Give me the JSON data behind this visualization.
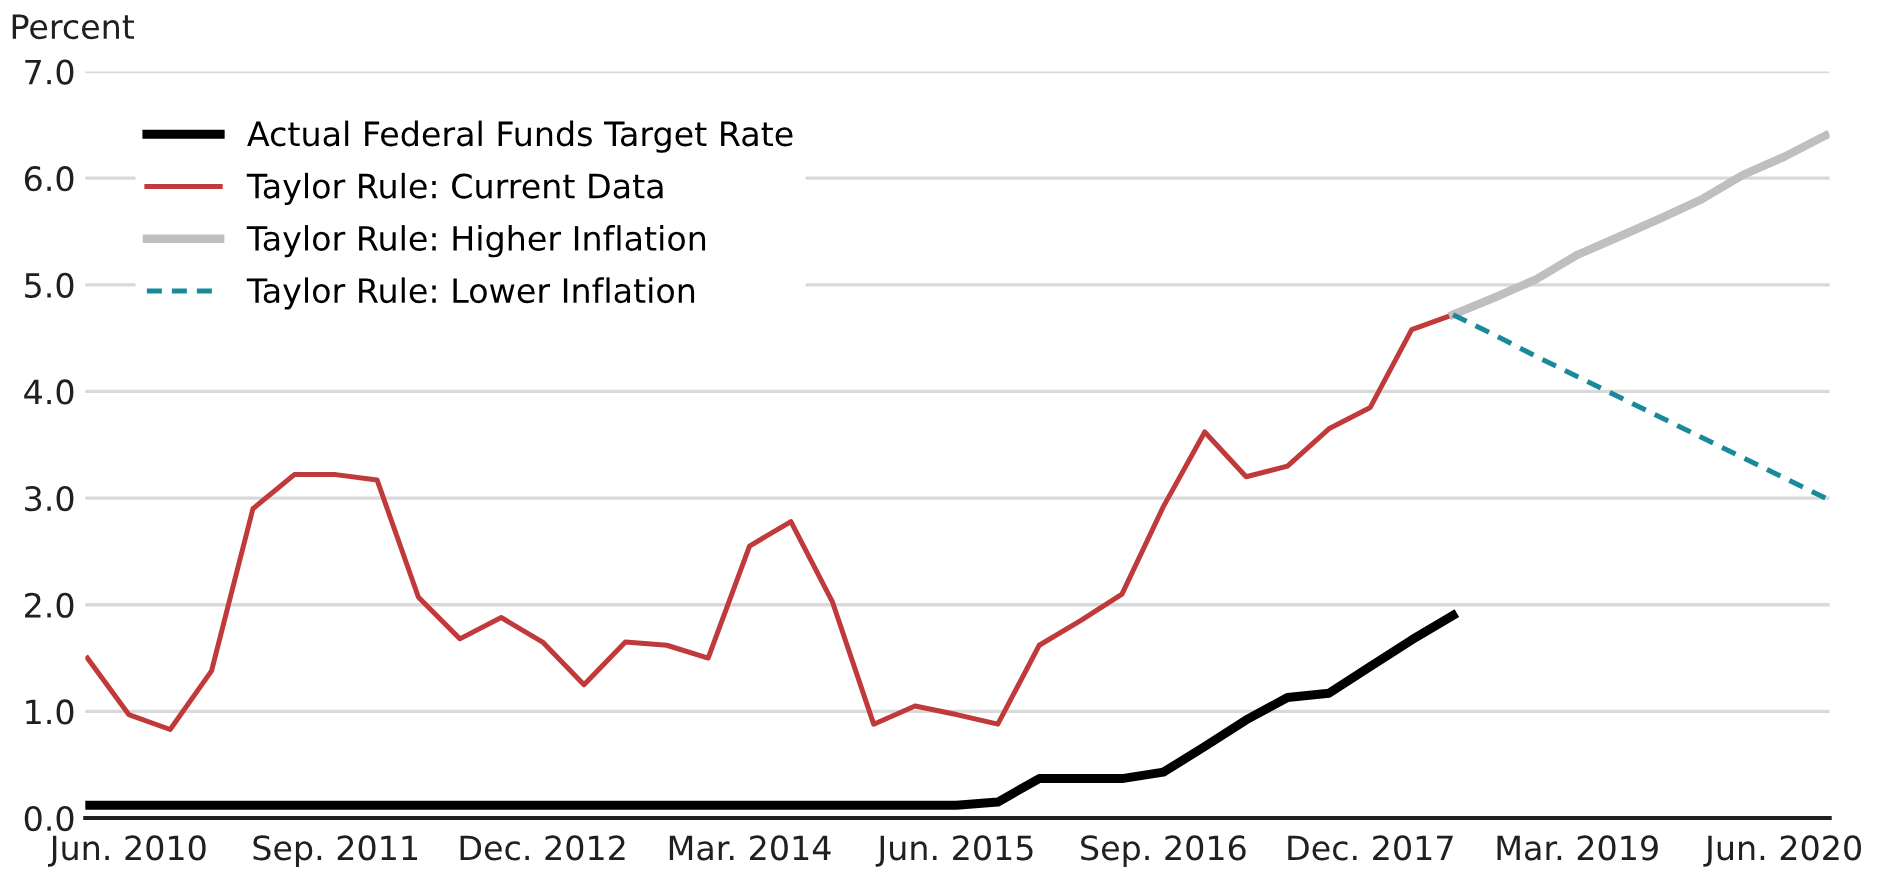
{
  "chart_data": {
    "type": "line",
    "ylabel": "Percent",
    "categories": [
      null,
      "Jun. 2010",
      null,
      null,
      null,
      null,
      "Sep. 2011",
      null,
      null,
      null,
      null,
      "Dec. 2012",
      null,
      null,
      null,
      null,
      "Mar. 2014",
      null,
      null,
      null,
      null,
      "Jun. 2015",
      null,
      null,
      null,
      null,
      "Sep. 2016",
      null,
      null,
      null,
      null,
      "Dec. 2017",
      null,
      null,
      null,
      null,
      "Mar. 2019",
      null,
      null,
      null,
      null,
      "Jun. 2020",
      null
    ],
    "series": [
      {
        "name": "Actual Federal Funds Target Rate",
        "color": "#000000",
        "values": [
          0.12,
          0.12,
          0.12,
          0.12,
          0.12,
          0.12,
          0.12,
          0.12,
          0.12,
          0.12,
          0.12,
          0.12,
          0.12,
          0.12,
          0.12,
          0.12,
          0.12,
          0.12,
          0.12,
          0.12,
          0.12,
          0.12,
          0.15,
          0.37,
          0.37,
          0.37,
          0.43,
          0.67,
          0.92,
          1.13,
          1.17,
          1.42,
          1.67,
          1.9,
          null,
          null,
          null,
          null,
          null,
          null,
          null,
          null,
          null
        ]
      },
      {
        "name": "Taylor Rule: Current Data",
        "color": "#c0393b",
        "values": [
          1.5,
          0.97,
          0.83,
          1.38,
          2.9,
          3.22,
          3.22,
          3.17,
          2.07,
          1.68,
          1.88,
          1.65,
          1.25,
          1.65,
          1.62,
          1.5,
          2.55,
          2.78,
          2.03,
          0.88,
          1.05,
          0.97,
          0.88,
          1.62,
          1.85,
          2.1,
          2.92,
          3.62,
          3.2,
          3.3,
          3.65,
          3.85,
          4.58,
          4.72,
          null,
          null,
          null,
          null,
          null,
          null,
          null,
          null,
          null
        ]
      },
      {
        "name": "Taylor Rule: Higher Inflation",
        "color": "#bfbfbf",
        "values": [
          null,
          null,
          null,
          null,
          null,
          null,
          null,
          null,
          null,
          null,
          null,
          null,
          null,
          null,
          null,
          null,
          null,
          null,
          null,
          null,
          null,
          null,
          null,
          null,
          null,
          null,
          null,
          null,
          null,
          null,
          null,
          null,
          null,
          4.72,
          4.88,
          5.05,
          5.28,
          5.45,
          5.62,
          5.8,
          6.03,
          6.2,
          6.4
        ]
      },
      {
        "name": "Taylor Rule: Lower Inflation",
        "color": "#1a8a9a",
        "line_style": "dashed",
        "values": [
          null,
          null,
          null,
          null,
          null,
          null,
          null,
          null,
          null,
          null,
          null,
          null,
          null,
          null,
          null,
          null,
          null,
          null,
          null,
          null,
          null,
          null,
          null,
          null,
          null,
          null,
          null,
          null,
          null,
          null,
          null,
          null,
          null,
          4.72,
          4.53,
          4.33,
          4.14,
          3.95,
          3.76,
          3.57,
          3.38,
          3.19,
          3.0
        ]
      }
    ],
    "ylim": [
      0,
      7
    ],
    "yticks": [
      {
        "value": 0,
        "label": "0.0"
      },
      {
        "value": 1,
        "label": "1.0"
      },
      {
        "value": 2,
        "label": "2.0"
      },
      {
        "value": 3,
        "label": "3.0"
      },
      {
        "value": 4,
        "label": "4.0"
      },
      {
        "value": 5,
        "label": "5.0"
      },
      {
        "value": 6,
        "label": "6.0"
      },
      {
        "value": 7,
        "label": "7.0"
      }
    ],
    "grid": "y",
    "legend": "top left",
    "marker": "none"
  }
}
